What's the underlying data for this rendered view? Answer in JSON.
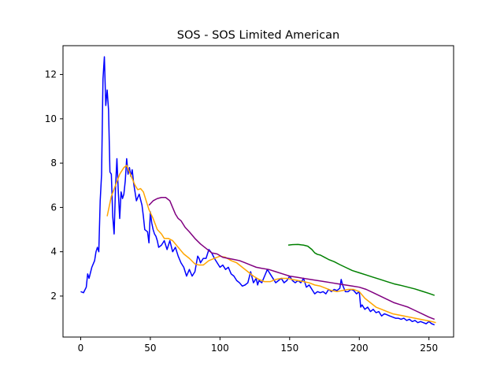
{
  "chart_data": {
    "type": "line",
    "title": "SOS - SOS Limited American",
    "xlabel": "",
    "ylabel": "",
    "xlim": [
      -12.7,
      267.7
    ],
    "ylim": [
      0.15,
      13.3
    ],
    "xticks": [
      0,
      50,
      100,
      150,
      200,
      250
    ],
    "yticks": [
      2,
      4,
      6,
      8,
      10,
      12
    ],
    "grid": false,
    "legend": "none",
    "series": [
      {
        "color": "#0000ff",
        "x": [
          0,
          2,
          4,
          5,
          6,
          8,
          10,
          11,
          12,
          13,
          14,
          15,
          16,
          17,
          18,
          19,
          20,
          21,
          22,
          23,
          24,
          25,
          26,
          27,
          28,
          29,
          30,
          31,
          32,
          33,
          34,
          35,
          36,
          37,
          38,
          40,
          42,
          44,
          45,
          46,
          47,
          48,
          49,
          50,
          51,
          52,
          53,
          54,
          55,
          56,
          58,
          60,
          62,
          64,
          66,
          68,
          70,
          72,
          74,
          76,
          78,
          80,
          82,
          84,
          85,
          86,
          88,
          90,
          92,
          94,
          96,
          98,
          100,
          102,
          104,
          106,
          108,
          110,
          112,
          114,
          116,
          118,
          120,
          122,
          124,
          126,
          127,
          128,
          130,
          132,
          134,
          135,
          136,
          138,
          140,
          142,
          144,
          146,
          148,
          150,
          152,
          154,
          156,
          158,
          160,
          162,
          164,
          166,
          168,
          170,
          172,
          174,
          176,
          178,
          180,
          182,
          184,
          186,
          187,
          188,
          190,
          192,
          194,
          196,
          198,
          200,
          201,
          202,
          204,
          206,
          208,
          210,
          212,
          214,
          216,
          218,
          220,
          222,
          224,
          226,
          228,
          230,
          232,
          234,
          236,
          238,
          240,
          242,
          244,
          246,
          248,
          250,
          252,
          254
        ],
        "y": [
          2.2,
          2.15,
          2.4,
          3.0,
          2.8,
          3.3,
          3.6,
          4.0,
          4.2,
          4.0,
          6.3,
          7.5,
          11.8,
          12.8,
          10.6,
          11.3,
          10.4,
          7.6,
          7.5,
          5.6,
          4.8,
          6.9,
          8.2,
          6.7,
          5.5,
          6.7,
          6.4,
          6.6,
          7.2,
          8.2,
          7.5,
          7.8,
          7.4,
          7.7,
          7.1,
          6.3,
          6.6,
          6.1,
          5.6,
          5.0,
          4.95,
          4.9,
          4.4,
          5.8,
          5.3,
          5.0,
          4.8,
          4.7,
          4.5,
          4.2,
          4.3,
          4.5,
          4.1,
          4.5,
          4.0,
          4.2,
          3.8,
          3.5,
          3.3,
          2.9,
          3.2,
          2.9,
          3.1,
          3.8,
          3.7,
          3.5,
          3.7,
          3.7,
          4.1,
          3.95,
          3.7,
          3.5,
          3.3,
          3.4,
          3.2,
          3.3,
          3.0,
          2.9,
          2.7,
          2.6,
          2.45,
          2.5,
          2.6,
          3.1,
          2.6,
          2.8,
          2.5,
          2.7,
          2.6,
          2.9,
          3.2,
          3.1,
          3.0,
          2.8,
          2.6,
          2.7,
          2.8,
          2.6,
          2.7,
          2.9,
          2.7,
          2.6,
          2.7,
          2.6,
          2.8,
          2.4,
          2.5,
          2.3,
          2.1,
          2.2,
          2.15,
          2.2,
          2.1,
          2.3,
          2.2,
          2.3,
          2.25,
          2.35,
          2.75,
          2.5,
          2.2,
          2.2,
          2.3,
          2.25,
          2.1,
          2.2,
          1.5,
          1.6,
          1.4,
          1.5,
          1.3,
          1.4,
          1.25,
          1.3,
          1.1,
          1.2,
          1.15,
          1.1,
          1.05,
          1.0,
          1.0,
          0.95,
          1.0,
          0.9,
          0.95,
          0.85,
          0.9,
          0.8,
          0.85,
          0.8,
          0.75,
          0.85,
          0.75,
          0.7
        ]
      },
      {
        "color": "#ffa500",
        "x": [
          19,
          22,
          25,
          28,
          31,
          33,
          35,
          37,
          39,
          41,
          43,
          45,
          47,
          49,
          52,
          55,
          58,
          60,
          63,
          66,
          70,
          74,
          78,
          82,
          85,
          88,
          92,
          96,
          100,
          104,
          108,
          112,
          116,
          120,
          124,
          128,
          132,
          136,
          140,
          144,
          148,
          152,
          156,
          160,
          164,
          168,
          172,
          176,
          180,
          184,
          188,
          192,
          196,
          200,
          204,
          208,
          212,
          216,
          220,
          224,
          228,
          232,
          236,
          240,
          244,
          248,
          252,
          255
        ],
        "y": [
          5.6,
          6.5,
          7.0,
          7.5,
          7.8,
          7.9,
          7.6,
          7.3,
          7.0,
          6.8,
          6.85,
          6.7,
          6.3,
          5.9,
          5.5,
          5.0,
          4.8,
          4.6,
          4.6,
          4.5,
          4.2,
          3.9,
          3.7,
          3.45,
          3.4,
          3.4,
          3.6,
          3.7,
          3.8,
          3.75,
          3.6,
          3.5,
          3.3,
          3.1,
          2.9,
          2.75,
          2.65,
          2.65,
          2.75,
          2.8,
          2.8,
          2.75,
          2.7,
          2.65,
          2.6,
          2.5,
          2.45,
          2.35,
          2.25,
          2.2,
          2.25,
          2.3,
          2.3,
          2.2,
          1.9,
          1.7,
          1.5,
          1.4,
          1.3,
          1.2,
          1.15,
          1.1,
          1.05,
          1.0,
          0.95,
          0.9,
          0.85,
          0.8
        ]
      },
      {
        "color": "#800080",
        "x": [
          49,
          52,
          55,
          58,
          61,
          64,
          66,
          68,
          70,
          72,
          75,
          78,
          82,
          86,
          90,
          94,
          98,
          102,
          106,
          110,
          114,
          118,
          122,
          126,
          130,
          135,
          140,
          145,
          150,
          155,
          160,
          165,
          170,
          175,
          180,
          185,
          190,
          195,
          200,
          205,
          210,
          215,
          220,
          225,
          230,
          235,
          240,
          245,
          250,
          254
        ],
        "y": [
          6.1,
          6.3,
          6.4,
          6.45,
          6.45,
          6.3,
          6.0,
          5.7,
          5.5,
          5.4,
          5.1,
          4.9,
          4.6,
          4.35,
          4.15,
          3.95,
          3.9,
          3.75,
          3.7,
          3.65,
          3.6,
          3.5,
          3.4,
          3.3,
          3.25,
          3.2,
          3.1,
          3.0,
          2.9,
          2.85,
          2.8,
          2.75,
          2.7,
          2.65,
          2.6,
          2.55,
          2.5,
          2.45,
          2.4,
          2.3,
          2.15,
          2.0,
          1.85,
          1.7,
          1.6,
          1.5,
          1.35,
          1.2,
          1.05,
          0.95
        ]
      },
      {
        "color": "#008000",
        "x": [
          149,
          152,
          156,
          160,
          163,
          166,
          168,
          170,
          172,
          175,
          178,
          182,
          186,
          190,
          195,
          200,
          205,
          210,
          215,
          220,
          225,
          230,
          235,
          240,
          245,
          250,
          254
        ],
        "y": [
          4.3,
          4.32,
          4.33,
          4.3,
          4.25,
          4.1,
          3.95,
          3.88,
          3.85,
          3.75,
          3.65,
          3.55,
          3.42,
          3.3,
          3.15,
          3.05,
          2.95,
          2.85,
          2.75,
          2.65,
          2.55,
          2.48,
          2.4,
          2.32,
          2.22,
          2.12,
          2.03
        ]
      }
    ]
  }
}
